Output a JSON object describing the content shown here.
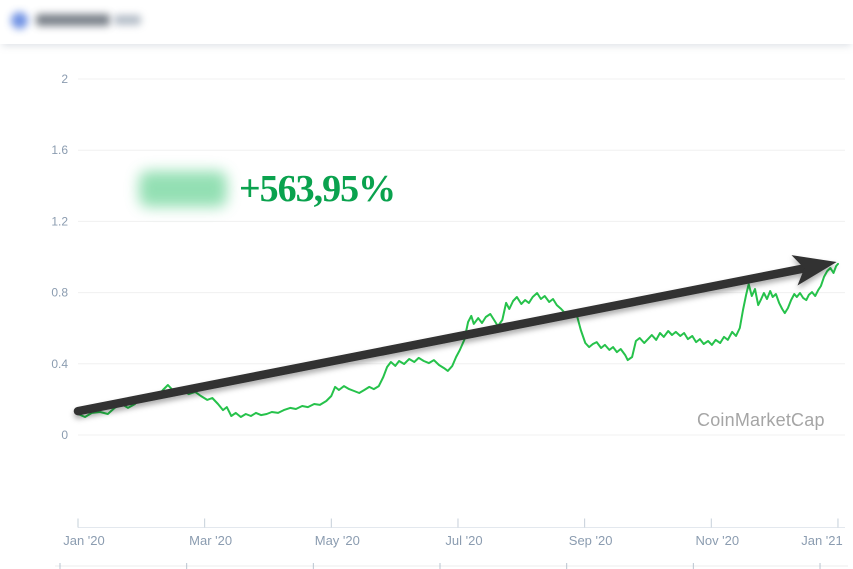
{
  "header": {
    "note": "blurred coin name and ticker with round blue logo"
  },
  "overlay": {
    "percent": "+563,95%"
  },
  "watermark": {
    "text": "CoinMarketCap"
  },
  "colors": {
    "line_green": "#26c24b",
    "percent_green": "#0aa24e",
    "arrow_dark": "#303030",
    "gridline": "#f0f0f0",
    "axis_line": "#e3e8ee",
    "tick_mark": "#c6d0da",
    "axis_label": "#8b9cb0",
    "brush_line": "#ececec",
    "brush_tick": "#b9c4d0",
    "watermark_gray": "#a5a5a5"
  },
  "chart_data": {
    "type": "line",
    "title": "",
    "xlabel": "",
    "ylabel": "",
    "legend": "none",
    "grid": "horizontal",
    "x_unit": "months since Jan 2020",
    "xlim": [
      0,
      12.1
    ],
    "ylim": [
      0,
      2.05
    ],
    "y_ticks": [
      0,
      0.4,
      0.8,
      1.2,
      1.6,
      2
    ],
    "x_tick_months": [
      0,
      2,
      4,
      6,
      8,
      10,
      12
    ],
    "x_tick_labels": [
      "Jan '20",
      "Mar '20",
      "May '20",
      "Jul '20",
      "Sep '20",
      "Nov '20",
      "Jan '21"
    ],
    "gain_percent": "+563,95%",
    "trend_arrow": {
      "start_m": 0.0,
      "start_v": 0.134,
      "end_m": 11.98,
      "end_v": 0.972
    },
    "points": [
      [
        0,
        0.118
      ],
      [
        0.11,
        0.101
      ],
      [
        0.22,
        0.124
      ],
      [
        0.35,
        0.129
      ],
      [
        0.47,
        0.118
      ],
      [
        0.58,
        0.152
      ],
      [
        0.69,
        0.174
      ],
      [
        0.79,
        0.152
      ],
      [
        0.9,
        0.174
      ],
      [
        0.98,
        0.208
      ],
      [
        1.07,
        0.191
      ],
      [
        1.17,
        0.225
      ],
      [
        1.26,
        0.219
      ],
      [
        1.34,
        0.253
      ],
      [
        1.42,
        0.281
      ],
      [
        1.48,
        0.258
      ],
      [
        1.56,
        0.236
      ],
      [
        1.66,
        0.247
      ],
      [
        1.75,
        0.23
      ],
      [
        1.85,
        0.242
      ],
      [
        1.94,
        0.219
      ],
      [
        2.04,
        0.197
      ],
      [
        2.12,
        0.208
      ],
      [
        2.21,
        0.174
      ],
      [
        2.29,
        0.14
      ],
      [
        2.35,
        0.157
      ],
      [
        2.42,
        0.107
      ],
      [
        2.49,
        0.124
      ],
      [
        2.57,
        0.101
      ],
      [
        2.65,
        0.118
      ],
      [
        2.73,
        0.107
      ],
      [
        2.81,
        0.124
      ],
      [
        2.89,
        0.112
      ],
      [
        2.98,
        0.118
      ],
      [
        3.06,
        0.129
      ],
      [
        3.16,
        0.124
      ],
      [
        3.25,
        0.14
      ],
      [
        3.35,
        0.152
      ],
      [
        3.44,
        0.146
      ],
      [
        3.54,
        0.163
      ],
      [
        3.63,
        0.157
      ],
      [
        3.73,
        0.174
      ],
      [
        3.82,
        0.169
      ],
      [
        3.92,
        0.191
      ],
      [
        4,
        0.219
      ],
      [
        4.06,
        0.27
      ],
      [
        4.12,
        0.253
      ],
      [
        4.2,
        0.275
      ],
      [
        4.28,
        0.258
      ],
      [
        4.36,
        0.247
      ],
      [
        4.44,
        0.236
      ],
      [
        4.52,
        0.253
      ],
      [
        4.6,
        0.27
      ],
      [
        4.67,
        0.258
      ],
      [
        4.75,
        0.275
      ],
      [
        4.82,
        0.326
      ],
      [
        4.88,
        0.382
      ],
      [
        4.94,
        0.41
      ],
      [
        5.01,
        0.388
      ],
      [
        5.07,
        0.416
      ],
      [
        5.15,
        0.399
      ],
      [
        5.23,
        0.427
      ],
      [
        5.31,
        0.41
      ],
      [
        5.38,
        0.433
      ],
      [
        5.46,
        0.416
      ],
      [
        5.54,
        0.404
      ],
      [
        5.62,
        0.421
      ],
      [
        5.7,
        0.393
      ],
      [
        5.78,
        0.376
      ],
      [
        5.84,
        0.36
      ],
      [
        5.91,
        0.388
      ],
      [
        5.97,
        0.438
      ],
      [
        6.03,
        0.478
      ],
      [
        6.1,
        0.534
      ],
      [
        6.16,
        0.635
      ],
      [
        6.21,
        0.669
      ],
      [
        6.25,
        0.624
      ],
      [
        6.32,
        0.657
      ],
      [
        6.38,
        0.629
      ],
      [
        6.44,
        0.663
      ],
      [
        6.51,
        0.68
      ],
      [
        6.57,
        0.646
      ],
      [
        6.63,
        0.612
      ],
      [
        6.7,
        0.646
      ],
      [
        6.76,
        0.742
      ],
      [
        6.81,
        0.708
      ],
      [
        6.87,
        0.753
      ],
      [
        6.93,
        0.775
      ],
      [
        7,
        0.736
      ],
      [
        7.06,
        0.758
      ],
      [
        7.12,
        0.742
      ],
      [
        7.18,
        0.775
      ],
      [
        7.25,
        0.798
      ],
      [
        7.31,
        0.764
      ],
      [
        7.37,
        0.781
      ],
      [
        7.44,
        0.747
      ],
      [
        7.5,
        0.764
      ],
      [
        7.56,
        0.73
      ],
      [
        7.63,
        0.708
      ],
      [
        7.69,
        0.685
      ],
      [
        7.75,
        0.663
      ],
      [
        7.82,
        0.685
      ],
      [
        7.88,
        0.669
      ],
      [
        7.94,
        0.59
      ],
      [
        8.01,
        0.517
      ],
      [
        8.07,
        0.494
      ],
      [
        8.13,
        0.511
      ],
      [
        8.19,
        0.522
      ],
      [
        8.26,
        0.489
      ],
      [
        8.32,
        0.506
      ],
      [
        8.39,
        0.478
      ],
      [
        8.45,
        0.494
      ],
      [
        8.51,
        0.466
      ],
      [
        8.57,
        0.483
      ],
      [
        8.64,
        0.449
      ],
      [
        8.68,
        0.421
      ],
      [
        8.75,
        0.438
      ],
      [
        8.81,
        0.528
      ],
      [
        8.87,
        0.545
      ],
      [
        8.94,
        0.517
      ],
      [
        9,
        0.539
      ],
      [
        9.06,
        0.562
      ],
      [
        9.13,
        0.534
      ],
      [
        9.19,
        0.573
      ],
      [
        9.25,
        0.551
      ],
      [
        9.32,
        0.584
      ],
      [
        9.38,
        0.562
      ],
      [
        9.44,
        0.579
      ],
      [
        9.51,
        0.556
      ],
      [
        9.57,
        0.573
      ],
      [
        9.63,
        0.539
      ],
      [
        9.7,
        0.556
      ],
      [
        9.76,
        0.522
      ],
      [
        9.82,
        0.539
      ],
      [
        9.88,
        0.511
      ],
      [
        9.95,
        0.528
      ],
      [
        10.01,
        0.506
      ],
      [
        10.07,
        0.534
      ],
      [
        10.14,
        0.517
      ],
      [
        10.2,
        0.551
      ],
      [
        10.26,
        0.534
      ],
      [
        10.33,
        0.579
      ],
      [
        10.39,
        0.556
      ],
      [
        10.45,
        0.601
      ],
      [
        10.5,
        0.702
      ],
      [
        10.55,
        0.787
      ],
      [
        10.59,
        0.848
      ],
      [
        10.64,
        0.781
      ],
      [
        10.69,
        0.82
      ],
      [
        10.74,
        0.73
      ],
      [
        10.78,
        0.758
      ],
      [
        10.83,
        0.798
      ],
      [
        10.88,
        0.764
      ],
      [
        10.93,
        0.809
      ],
      [
        10.97,
        0.775
      ],
      [
        11.02,
        0.792
      ],
      [
        11.07,
        0.742
      ],
      [
        11.12,
        0.708
      ],
      [
        11.16,
        0.685
      ],
      [
        11.21,
        0.713
      ],
      [
        11.26,
        0.758
      ],
      [
        11.31,
        0.792
      ],
      [
        11.35,
        0.775
      ],
      [
        11.4,
        0.798
      ],
      [
        11.45,
        0.77
      ],
      [
        11.5,
        0.758
      ],
      [
        11.54,
        0.787
      ],
      [
        11.59,
        0.803
      ],
      [
        11.64,
        0.781
      ],
      [
        11.69,
        0.815
      ],
      [
        11.73,
        0.837
      ],
      [
        11.78,
        0.888
      ],
      [
        11.83,
        0.921
      ],
      [
        11.88,
        0.938
      ],
      [
        11.93,
        0.91
      ],
      [
        11.97,
        0.949
      ],
      [
        12,
        0.961
      ]
    ]
  }
}
